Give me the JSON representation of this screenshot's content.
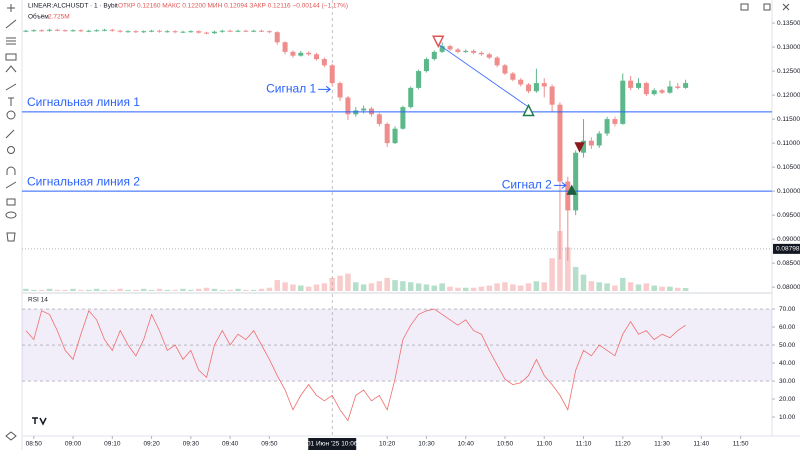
{
  "chart_data": {
    "type": "candlestick",
    "title": "LINEAR:ALCHUSDT · 1 · Bybit",
    "ohlc_header": "ОТКР 0.12160 МАКС 0.12200 МИН 0.12094 ЗАКР 0.12116 −0.00144 (−1.17%)",
    "volume_title": "Объём",
    "volume_value_label": "2.725M",
    "rsi_title": "RSI 14",
    "crosshair_label": "01 Июн '25 10:06",
    "up_color": "#5cb88a",
    "down_color": "#ef8d8d",
    "x": [
      "08:48",
      "08:50",
      "08:52",
      "08:54",
      "08:56",
      "08:58",
      "09:00",
      "09:02",
      "09:04",
      "09:06",
      "09:08",
      "09:10",
      "09:12",
      "09:14",
      "09:16",
      "09:18",
      "09:20",
      "09:22",
      "09:24",
      "09:26",
      "09:28",
      "09:30",
      "09:32",
      "09:34",
      "09:36",
      "09:38",
      "09:40",
      "09:42",
      "09:44",
      "09:46",
      "09:48",
      "09:50",
      "09:52",
      "09:54",
      "09:56",
      "09:58",
      "10:00",
      "10:02",
      "10:04",
      "10:06",
      "10:08",
      "10:10",
      "10:12",
      "10:14",
      "10:16",
      "10:18",
      "10:20",
      "10:22",
      "10:24",
      "10:26",
      "10:28",
      "10:30",
      "10:32",
      "10:34",
      "10:36",
      "10:38",
      "10:40",
      "10:42",
      "10:44",
      "10:46",
      "10:48",
      "10:50",
      "10:52",
      "10:54",
      "10:56",
      "10:58",
      "11:00",
      "11:02",
      "11:04",
      "11:06",
      "11:08",
      "11:10",
      "11:12",
      "11:14",
      "11:16",
      "11:18",
      "11:20",
      "11:22",
      "11:24",
      "11:26",
      "11:28",
      "11:30",
      "11:32",
      "11:34",
      "11:36"
    ],
    "open": [
      0.1333,
      0.1334,
      0.1335,
      0.1334,
      0.1336,
      0.1335,
      0.1334,
      0.1335,
      0.1333,
      0.1334,
      0.1335,
      0.1336,
      0.1334,
      0.1332,
      0.1333,
      0.1331,
      0.1333,
      0.1334,
      0.1332,
      0.1333,
      0.1331,
      0.1332,
      0.1333,
      0.133,
      0.1329,
      0.1332,
      0.1334,
      0.1333,
      0.1334,
      0.1333,
      0.1334,
      0.1333,
      0.1331,
      0.131,
      0.129,
      0.1282,
      0.1288,
      0.1285,
      0.1275,
      0.1262,
      0.1225,
      0.1195,
      0.116,
      0.1168,
      0.1172,
      0.116,
      0.114,
      0.11,
      0.113,
      0.1175,
      0.1215,
      0.125,
      0.1275,
      0.129,
      0.1302,
      0.1295,
      0.129,
      0.1292,
      0.1288,
      0.1285,
      0.1278,
      0.1262,
      0.1245,
      0.1232,
      0.1222,
      0.1208,
      0.1225,
      0.1218,
      0.118,
      0.102,
      0.096,
      0.108,
      0.1105,
      0.1095,
      0.112,
      0.115,
      0.114,
      0.123,
      0.1215,
      0.1225,
      0.1202,
      0.121,
      0.1205,
      0.1218,
      0.1215
    ],
    "high": [
      0.1336,
      0.1337,
      0.1337,
      0.1338,
      0.1338,
      0.1337,
      0.1337,
      0.1337,
      0.1336,
      0.1337,
      0.1338,
      0.1338,
      0.1336,
      0.1335,
      0.1335,
      0.1335,
      0.1336,
      0.1336,
      0.1335,
      0.1335,
      0.1334,
      0.1335,
      0.1335,
      0.1332,
      0.1334,
      0.1336,
      0.1336,
      0.1336,
      0.1336,
      0.1336,
      0.1336,
      0.1335,
      0.1333,
      0.1312,
      0.1293,
      0.1292,
      0.1291,
      0.1288,
      0.1278,
      0.1265,
      0.1228,
      0.1198,
      0.1175,
      0.1178,
      0.1175,
      0.1163,
      0.1143,
      0.1135,
      0.1178,
      0.1218,
      0.1253,
      0.1278,
      0.1293,
      0.131,
      0.1305,
      0.1298,
      0.1295,
      0.1295,
      0.1291,
      0.1288,
      0.1281,
      0.1265,
      0.1248,
      0.1235,
      0.1225,
      0.1255,
      0.1235,
      0.1222,
      0.1185,
      0.103,
      0.1085,
      0.115,
      0.1112,
      0.1125,
      0.1155,
      0.1155,
      0.1245,
      0.124,
      0.1235,
      0.1228,
      0.1214,
      0.1213,
      0.123,
      0.1225,
      0.1232
    ],
    "low": [
      0.1331,
      0.1332,
      0.1332,
      0.1332,
      0.1333,
      0.1332,
      0.1332,
      0.1331,
      0.1331,
      0.1332,
      0.1333,
      0.1332,
      0.133,
      0.133,
      0.1329,
      0.1329,
      0.1331,
      0.133,
      0.133,
      0.1329,
      0.1329,
      0.133,
      0.1328,
      0.1327,
      0.1327,
      0.133,
      0.1331,
      0.1331,
      0.1331,
      0.1331,
      0.1331,
      0.1329,
      0.1305,
      0.1285,
      0.1278,
      0.128,
      0.1282,
      0.1272,
      0.1258,
      0.122,
      0.1188,
      0.1148,
      0.1155,
      0.1162,
      0.1155,
      0.1135,
      0.1092,
      0.1098,
      0.1128,
      0.1172,
      0.1212,
      0.1247,
      0.1272,
      0.1288,
      0.1292,
      0.1287,
      0.1288,
      0.1285,
      0.1282,
      0.1275,
      0.1258,
      0.1242,
      0.1229,
      0.1218,
      0.1204,
      0.1205,
      0.1195,
      0.1165,
      0.0858,
      0.0855,
      0.095,
      0.107,
      0.1088,
      0.109,
      0.1115,
      0.1135,
      0.1138,
      0.121,
      0.1212,
      0.1198,
      0.1199,
      0.1202,
      0.1203,
      0.1212,
      0.1213
    ],
    "close": [
      0.1334,
      0.1335,
      0.1334,
      0.1336,
      0.1335,
      0.1334,
      0.1335,
      0.1333,
      0.1334,
      0.1335,
      0.1336,
      0.1334,
      0.1332,
      0.1333,
      0.1331,
      0.1333,
      0.1334,
      0.1332,
      0.1333,
      0.1331,
      0.1332,
      0.1333,
      0.133,
      0.1329,
      0.1332,
      0.1334,
      0.1333,
      0.1334,
      0.1333,
      0.1334,
      0.1333,
      0.1331,
      0.131,
      0.129,
      0.1282,
      0.1288,
      0.1285,
      0.1275,
      0.1262,
      0.1225,
      0.1195,
      0.116,
      0.1168,
      0.1172,
      0.116,
      0.114,
      0.11,
      0.113,
      0.1175,
      0.1215,
      0.125,
      0.1275,
      0.129,
      0.1302,
      0.1295,
      0.129,
      0.1292,
      0.1288,
      0.1285,
      0.1278,
      0.1262,
      0.1245,
      0.1232,
      0.1222,
      0.1208,
      0.1225,
      0.1218,
      0.118,
      0.102,
      0.096,
      0.108,
      0.1105,
      0.1095,
      0.112,
      0.115,
      0.114,
      0.123,
      0.1215,
      0.1225,
      0.1202,
      0.121,
      0.1205,
      0.1218,
      0.1215,
      0.1225
    ],
    "volume": [
      2,
      1,
      1,
      2,
      1,
      1,
      2,
      1,
      1,
      2,
      1,
      1,
      2,
      1,
      1,
      2,
      1,
      2,
      1,
      1,
      2,
      1,
      2,
      3,
      2,
      1,
      1,
      2,
      1,
      1,
      2,
      3,
      10,
      8,
      6,
      5,
      4,
      6,
      7,
      12,
      14,
      16,
      8,
      6,
      7,
      9,
      12,
      10,
      9,
      8,
      7,
      6,
      5,
      7,
      4,
      3,
      3,
      3,
      4,
      5,
      7,
      8,
      6,
      5,
      7,
      9,
      8,
      30,
      55,
      40,
      22,
      15,
      9,
      8,
      7,
      5,
      12,
      8,
      6,
      7,
      5,
      4,
      4,
      3,
      2.725
    ],
    "rsi": [
      58,
      53,
      69,
      67,
      58,
      47,
      42,
      56,
      69,
      64,
      53,
      47,
      58,
      50,
      44,
      53,
      67,
      58,
      47,
      50,
      42,
      47,
      36,
      32,
      50,
      58,
      50,
      56,
      53,
      58,
      50,
      42,
      33,
      25,
      14,
      22,
      28,
      22,
      19,
      22,
      14,
      8,
      22,
      25,
      19,
      22,
      14,
      31,
      53,
      61,
      67,
      69,
      70,
      67,
      64,
      61,
      64,
      58,
      56,
      47,
      39,
      31,
      28,
      29,
      33,
      42,
      33,
      28,
      22,
      14,
      36,
      47,
      44,
      50,
      47,
      44,
      56,
      63,
      56,
      58,
      53,
      56,
      54,
      58,
      61
    ],
    "rsi_color": "#f06d6d",
    "rsi_levels": [
      70,
      50,
      30
    ],
    "xlim": [
      "08:47",
      "11:58"
    ],
    "xticks": [
      "08:50",
      "09:00",
      "09:10",
      "09:20",
      "09:30",
      "09:40",
      "09:50",
      "10:20",
      "10:30",
      "10:40",
      "10:50",
      "11:00",
      "11:10",
      "11:20",
      "11:30",
      "11:40",
      "11:50"
    ],
    "ylim": [
      0.079,
      0.1398
    ],
    "yticks": [
      {
        "value": 0.135,
        "label": "0.13500"
      },
      {
        "value": 0.13,
        "label": "0.13000"
      },
      {
        "value": 0.125,
        "label": "0.12500"
      },
      {
        "value": 0.12,
        "label": "0.12000"
      },
      {
        "value": 0.115,
        "label": "0.11500"
      },
      {
        "value": 0.11,
        "label": "0.11000"
      },
      {
        "value": 0.105,
        "label": "0.10500"
      },
      {
        "value": 0.1,
        "label": "0.10000"
      },
      {
        "value": 0.095,
        "label": "0.09500"
      },
      {
        "value": 0.09,
        "label": "0.09000"
      },
      {
        "value": 0.085,
        "label": "0.08500"
      },
      {
        "value": 0.08,
        "label": "0.08000"
      }
    ],
    "price_marker": 0.08798,
    "rsi_ylim": [
      2.8,
      77.8
    ],
    "rsi_yticks": [
      {
        "value": 70,
        "label": "70.00"
      },
      {
        "value": 60,
        "label": "60.00"
      },
      {
        "value": 50,
        "label": "50.00"
      },
      {
        "value": 40,
        "label": "40.00"
      },
      {
        "value": 30,
        "label": "30.00"
      },
      {
        "value": 20,
        "label": "20.00"
      },
      {
        "value": 10,
        "label": "10.00"
      }
    ],
    "signal_lines": [
      {
        "label": "Сигнальная линия 1",
        "value": 0.1165
      },
      {
        "label": "Сигнальная линия 2",
        "value": 0.1
      }
    ],
    "signals": [
      {
        "label": "Сигнал 1",
        "x": "10:06",
        "value": 0.1212
      },
      {
        "label": "Сигнал 2",
        "x": "11:06",
        "value": 0.1012
      }
    ],
    "trend_line": {
      "x": [
        "10:33",
        "10:56"
      ],
      "values": [
        0.1306,
        0.1175
      ]
    },
    "markers": [
      {
        "x": "10:33",
        "value": 0.1312,
        "shape": "down",
        "color": "#e05555",
        "filled": false
      },
      {
        "x": "10:56",
        "value": 0.1168,
        "shape": "up",
        "color": "#1e7d4e",
        "filled": false
      },
      {
        "x": "11:09",
        "value": 0.1092,
        "shape": "down",
        "color": "#8b1a1a",
        "filled": true
      },
      {
        "x": "11:07",
        "value": 0.1002,
        "shape": "up",
        "color": "#1e5d3e",
        "filled": true
      }
    ]
  }
}
